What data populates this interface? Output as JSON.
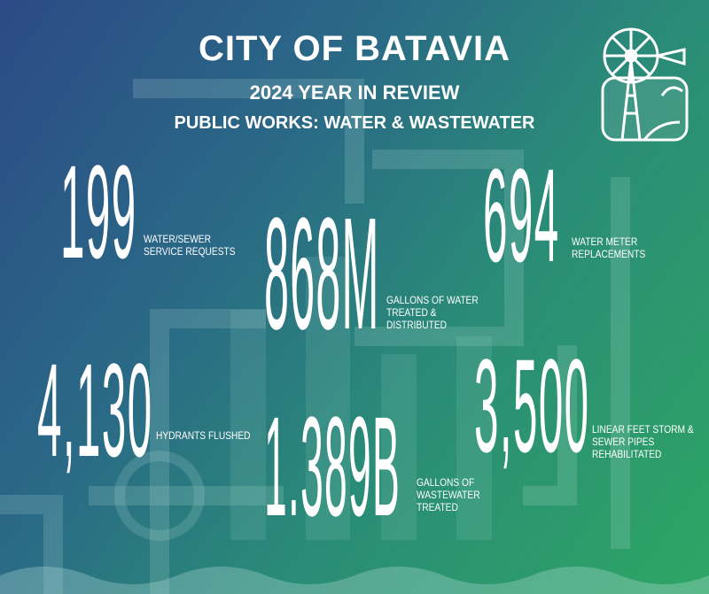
{
  "header": {
    "title": "CITY OF BATAVIA",
    "subtitle": "2024 YEAR IN REVIEW",
    "department": "PUBLIC WORKS: WATER & WASTEWATER"
  },
  "logo": {
    "icon": "windmill-logo-icon"
  },
  "stats": [
    {
      "value": "199",
      "label_lines": [
        "WATER/SEWER",
        "SERVICE REQUESTS"
      ]
    },
    {
      "value": "868M",
      "label_lines": [
        "GALLONS OF WATER",
        "TREATED &",
        "DISTRIBUTED"
      ]
    },
    {
      "value": "694",
      "label_lines": [
        "WATER METER",
        "REPLACEMENTS"
      ]
    },
    {
      "value": "4,130",
      "label_lines": [
        "HYDRANTS FLUSHED"
      ]
    },
    {
      "value": "1.389B",
      "label_lines": [
        "GALLONS OF",
        "WASTEWATER",
        "TREATED"
      ]
    },
    {
      "value": "3,500",
      "label_lines": [
        "LINEAR FEET STORM &",
        "SEWER PIPES",
        "REHABILITATED"
      ]
    }
  ],
  "colors": {
    "gradient_start": "#2c4a86",
    "gradient_end": "#2ea664"
  }
}
